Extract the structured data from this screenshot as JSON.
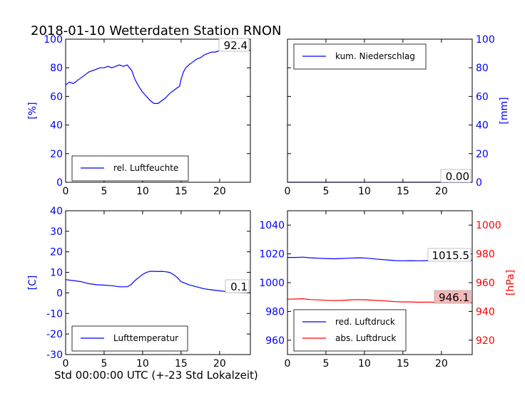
{
  "title": "2018-01-10 Wetterdaten Station RNON",
  "xlabel": "Std 00:00:00 UTC (+-23 Std Lokalzeit)",
  "colors": {
    "blue": "#0000ff",
    "red": "#ff0000",
    "value_box_red": "#f4b8b8"
  },
  "chart_data": [
    {
      "type": "line",
      "name": "humidity",
      "xlim": [
        0,
        24
      ],
      "ylim": [
        0,
        100
      ],
      "xticks": [
        0,
        5,
        10,
        15,
        20
      ],
      "yticks": [
        0,
        20,
        40,
        60,
        80,
        100
      ],
      "ylabel": "[%]",
      "legend": {
        "placement": "lower-right",
        "entries": [
          "rel. Luftfeuchte"
        ]
      },
      "current_value": "92.4",
      "series": [
        {
          "name": "rel. Luftfeuchte",
          "color": "#0000ff",
          "x": [
            0,
            0.5,
            1,
            1.5,
            2,
            2.5,
            3,
            3.5,
            4,
            4.5,
            5,
            5.5,
            6,
            6.5,
            7,
            7.5,
            8,
            8.3,
            8.6,
            9,
            9.5,
            10,
            10.5,
            11,
            11.5,
            12,
            12.5,
            13,
            13.5,
            14,
            14.5,
            14.8,
            15,
            15.3,
            15.6,
            16,
            16.5,
            17,
            17.5,
            18,
            18.5,
            19,
            19.5,
            20,
            20.5,
            21,
            21.5,
            22,
            22.5,
            23,
            23.5,
            24
          ],
          "y": [
            68,
            70,
            69,
            71,
            73,
            75,
            77,
            78,
            79,
            80,
            80,
            81,
            80,
            81,
            82,
            81,
            82,
            80,
            78,
            72,
            67,
            63,
            60,
            57,
            55,
            55,
            57,
            59,
            62,
            64,
            66,
            67,
            72,
            77,
            80,
            82,
            84,
            86,
            87,
            89,
            90,
            91,
            91,
            92,
            93,
            93,
            92,
            92,
            93,
            92,
            92,
            92.4
          ]
        }
      ]
    },
    {
      "type": "line",
      "name": "precipitation",
      "xlim": [
        0,
        24
      ],
      "ylim": [
        0,
        100
      ],
      "xticks": [
        0,
        5,
        10,
        15,
        20
      ],
      "yticks": [
        0,
        20,
        40,
        60,
        80,
        100
      ],
      "ylabel": "[mm]",
      "legend": {
        "placement": "upper-left",
        "entries": [
          "kum. Niederschlag"
        ]
      },
      "current_value": "0.00",
      "series": [
        {
          "name": "kum. Niederschlag",
          "color": "#0000ff",
          "x": [
            0,
            24
          ],
          "y": [
            0,
            0
          ]
        }
      ]
    },
    {
      "type": "line",
      "name": "temperature",
      "xlim": [
        0,
        24
      ],
      "ylim": [
        -30,
        40
      ],
      "xticks": [
        0,
        5,
        10,
        15,
        20
      ],
      "yticks": [
        -30,
        -20,
        -10,
        0,
        10,
        20,
        30,
        40
      ],
      "ylabel": "[C]",
      "legend": {
        "placement": "lower-right",
        "entries": [
          "Lufttemperatur"
        ]
      },
      "current_value": "0.1",
      "series": [
        {
          "name": "Lufttemperatur",
          "color": "#0000ff",
          "x": [
            0,
            1,
            2,
            3,
            4,
            5,
            6,
            7,
            8,
            8.5,
            9,
            9.5,
            10,
            10.5,
            11,
            11.5,
            12,
            12.5,
            13,
            13.5,
            14,
            14.5,
            15,
            16,
            17,
            18,
            19,
            20,
            21,
            22,
            23,
            24
          ],
          "y": [
            6.5,
            6,
            5.5,
            4.5,
            4,
            3.8,
            3.5,
            3,
            3,
            4,
            6,
            7.5,
            9,
            10,
            10.5,
            10.5,
            10.4,
            10.5,
            10.3,
            10,
            9,
            7.5,
            5.5,
            4,
            3,
            2,
            1.5,
            1,
            0.6,
            0.4,
            0.2,
            0.1
          ]
        }
      ]
    },
    {
      "type": "line",
      "name": "pressure",
      "xlim": [
        0,
        24
      ],
      "ylim": [
        950,
        1050
      ],
      "ylim_right": [
        910,
        1010
      ],
      "xticks": [
        0,
        5,
        10,
        15,
        20
      ],
      "yticks": [
        960,
        980,
        1000,
        1020,
        1040
      ],
      "yticks_right": [
        920,
        940,
        960,
        980,
        1000
      ],
      "ylabel_right": "[hPa]",
      "legend": {
        "placement": "lower-left",
        "entries": [
          "red. Luftdruck",
          "abs. Luftdruck"
        ]
      },
      "current_values": [
        "1015.5",
        "946.1"
      ],
      "series": [
        {
          "name": "red. Luftdruck",
          "color": "#0000ff",
          "axis": "left",
          "x": [
            0,
            1,
            2,
            3,
            4,
            5,
            6,
            7,
            8,
            9,
            10,
            11,
            12,
            13,
            14,
            15,
            16,
            17,
            18,
            19,
            20,
            21,
            22,
            23,
            24
          ],
          "y": [
            1017.5,
            1017.5,
            1017.7,
            1017.3,
            1017,
            1016.8,
            1016.6,
            1016.8,
            1017,
            1017.3,
            1017.2,
            1016.7,
            1016.2,
            1015.8,
            1015.3,
            1015.2,
            1015.3,
            1015.2,
            1015.3,
            1015.3,
            1015.4,
            1015.5,
            1015.6,
            1015.5,
            1015.5
          ]
        },
        {
          "name": "abs. Luftdruck",
          "color": "#ff0000",
          "axis": "right",
          "x": [
            0,
            1,
            2,
            3,
            4,
            5,
            6,
            7,
            8,
            9,
            10,
            11,
            12,
            13,
            14,
            15,
            16,
            17,
            18,
            19,
            20,
            21,
            22,
            23,
            24
          ],
          "y": [
            948.5,
            948.6,
            948.8,
            948.2,
            948,
            947.7,
            947.5,
            947.6,
            947.9,
            948.2,
            948.1,
            947.8,
            947.5,
            947.2,
            946.8,
            946.6,
            946.6,
            946.4,
            946.5,
            946.4,
            946.3,
            946.2,
            946.2,
            946.1,
            946.1
          ]
        }
      ]
    }
  ]
}
